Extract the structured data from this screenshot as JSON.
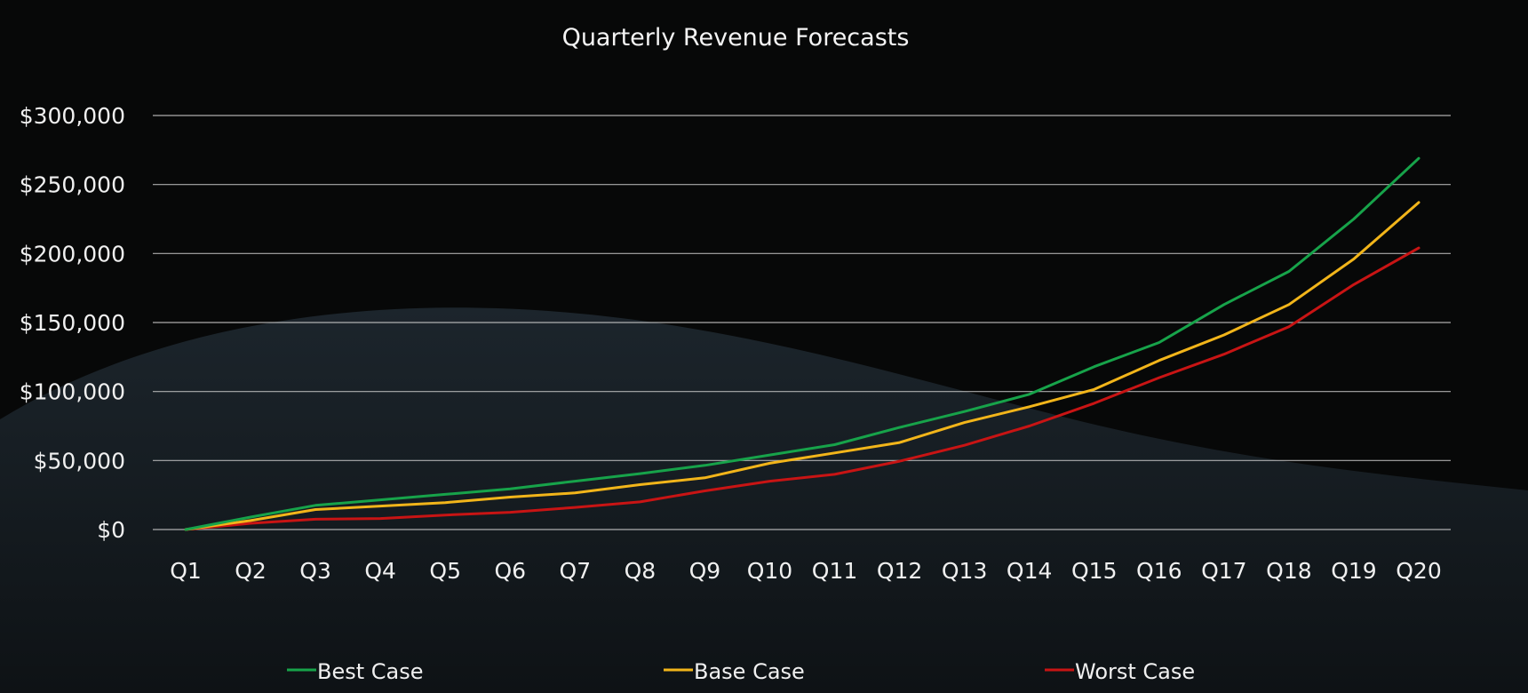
{
  "chart_data": {
    "type": "line",
    "title": "Quarterly Revenue Forecasts",
    "xlabel": "",
    "ylabel": "",
    "categories": [
      "Q1",
      "Q2",
      "Q3",
      "Q4",
      "Q5",
      "Q6",
      "Q7",
      "Q8",
      "Q9",
      "Q10",
      "Q11",
      "Q12",
      "Q13",
      "Q14",
      "Q15",
      "Q16",
      "Q17",
      "Q18",
      "Q19",
      "Q20"
    ],
    "y_tick_labels": [
      "$0",
      "$50,000",
      "$100,000",
      "$150,000",
      "$200,000",
      "$250,000",
      "$300,000"
    ],
    "y_ticks": [
      0,
      50000,
      100000,
      150000,
      200000,
      250000,
      300000
    ],
    "ylim": [
      0,
      300000
    ],
    "grid": "horizontal",
    "legend_position": "bottom",
    "series": [
      {
        "name": "Best Case",
        "color": "#17a34a",
        "values": [
          0,
          9000,
          17500,
          21500,
          25500,
          29500,
          35000,
          40500,
          46500,
          54000,
          61500,
          74000,
          85500,
          98000,
          118000,
          135500,
          163000,
          187000,
          225000,
          269000
        ]
      },
      {
        "name": "Base Case",
        "color": "#f2b51a",
        "values": [
          0,
          6500,
          14500,
          17000,
          19500,
          23500,
          26500,
          32500,
          37500,
          48000,
          55500,
          63000,
          77500,
          89000,
          101500,
          122500,
          141000,
          163000,
          196000,
          237000
        ]
      },
      {
        "name": "Worst Case",
        "color": "#c81414",
        "values": [
          0,
          4500,
          7500,
          8000,
          10500,
          12500,
          16000,
          20000,
          28000,
          35000,
          40000,
          49500,
          61000,
          75000,
          91500,
          110000,
          127000,
          147000,
          177500,
          204000
        ]
      }
    ]
  }
}
